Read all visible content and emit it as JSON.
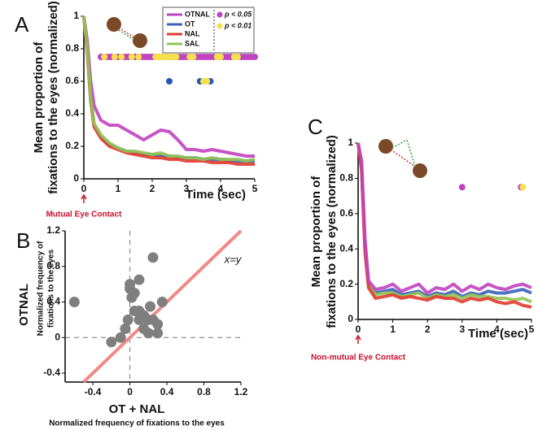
{
  "chart_data": [
    {
      "type": "line",
      "panel": "A",
      "ylabel": [
        "Mean proportion of",
        "fixations to the eyes (normalized)"
      ],
      "xlabel": "Time (sec)",
      "annotation": "Mutual Eye Contact",
      "x": [
        0,
        0.1,
        0.2,
        0.3,
        0.5,
        0.75,
        1,
        1.25,
        1.5,
        1.75,
        2,
        2.25,
        2.5,
        2.75,
        3,
        3.25,
        3.5,
        3.75,
        4,
        4.25,
        4.5,
        4.75,
        5
      ],
      "series": [
        {
          "name": "OTNAL",
          "color": "#c043c0",
          "values": [
            1,
            0.85,
            0.6,
            0.45,
            0.36,
            0.33,
            0.33,
            0.3,
            0.27,
            0.24,
            0.27,
            0.3,
            0.29,
            0.24,
            0.18,
            0.18,
            0.17,
            0.18,
            0.17,
            0.16,
            0.15,
            0.14,
            0.14
          ]
        },
        {
          "name": "OT",
          "color": "#3b62b8",
          "values": [
            1,
            0.8,
            0.5,
            0.33,
            0.26,
            0.21,
            0.19,
            0.17,
            0.16,
            0.15,
            0.15,
            0.14,
            0.14,
            0.13,
            0.13,
            0.13,
            0.12,
            0.12,
            0.12,
            0.11,
            0.11,
            0.11,
            0.11
          ]
        },
        {
          "name": "NAL",
          "color": "#e23a2e",
          "values": [
            1,
            0.78,
            0.48,
            0.32,
            0.25,
            0.2,
            0.18,
            0.16,
            0.15,
            0.14,
            0.13,
            0.13,
            0.12,
            0.12,
            0.11,
            0.11,
            0.11,
            0.1,
            0.1,
            0.1,
            0.09,
            0.09,
            0.09
          ]
        },
        {
          "name": "SAL",
          "color": "#92c456",
          "values": [
            1,
            0.8,
            0.5,
            0.34,
            0.27,
            0.22,
            0.19,
            0.17,
            0.17,
            0.16,
            0.15,
            0.16,
            0.14,
            0.14,
            0.13,
            0.13,
            0.12,
            0.13,
            0.12,
            0.12,
            0.12,
            0.11,
            0.12
          ]
        }
      ],
      "significance": [
        {
          "label": "p < 0.05",
          "color": "#c043c0"
        },
        {
          "label": "p < 0.01",
          "color": "#f6e04c"
        }
      ],
      "markers": [
        {
          "color": "#c043c0",
          "y": 0.75,
          "x": [
            0.5,
            0.6,
            0.7,
            0.8,
            0.9,
            1,
            1.1,
            1.2,
            1.3,
            1.4,
            1.5,
            1.6,
            1.7,
            1.8,
            1.9,
            2,
            2.1,
            2.2,
            2.3,
            2.4,
            2.5,
            2.6,
            2.7,
            2.8,
            2.9,
            3,
            3.1,
            3.2,
            3.3,
            3.4,
            3.5,
            3.6,
            3.7,
            3.8,
            3.9,
            4,
            4.1,
            4.2,
            4.3,
            4.4,
            4.5,
            4.6,
            4.7,
            4.8,
            4.9,
            5
          ]
        },
        {
          "color": "#f6e04c",
          "y": 0.75,
          "x": [
            0.6,
            0.9,
            1.1,
            1.4,
            1.6,
            2.1,
            2.2,
            2.3,
            2.4,
            2.5,
            2.6,
            2.7,
            3.1,
            3.2,
            3.9,
            4,
            4.4,
            4.5
          ]
        },
        {
          "color": "#2a55b8",
          "y": 0.6,
          "x": [
            2.5,
            3.4,
            3.7
          ]
        },
        {
          "color": "#f6e04c",
          "y": 0.6,
          "x": [
            3.5,
            3.6
          ]
        }
      ],
      "xlim": [
        0,
        5
      ],
      "xticks": [
        0,
        1,
        2,
        3,
        4,
        5
      ],
      "ylim": [
        0,
        1
      ],
      "yticks": [
        0,
        0.2,
        0.4,
        0.6,
        0.8,
        1
      ]
    },
    {
      "type": "scatter",
      "panel": "B",
      "ylabel": "OTNAL",
      "ylabel_sub": [
        "Normalized frequency of",
        "fixations to the eyes"
      ],
      "xlabel": "OT + NAL",
      "xlabel_sub": "Normalized frequency of fixations to the eyes",
      "annotation": "x=y",
      "identity_color": "#f08a86",
      "series": [
        {
          "color": "#7f7f7f",
          "x": [
            -0.6,
            -0.2,
            -0.1,
            -0.05,
            0,
            0,
            0.02,
            -0.02,
            0.05,
            0.1,
            0.1,
            0.15,
            0.15,
            0.2,
            0.2,
            0.22,
            0.25,
            0.25,
            0.3,
            0.3,
            0.35,
            0.1,
            0.05
          ],
          "values": [
            0.4,
            -0.05,
            0,
            0.1,
            0.55,
            0.6,
            0.45,
            0.2,
            0.3,
            0.2,
            0.3,
            0.1,
            0.25,
            0.05,
            0.2,
            0.35,
            0.2,
            0.9,
            0.15,
            0.05,
            0.4,
            0.65,
            0.5
          ]
        }
      ],
      "xlim": [
        -0.7,
        1.2
      ],
      "xticks": [
        -0.4,
        0,
        0.4,
        0.8,
        1.2
      ],
      "ylim": [
        -0.5,
        1.2
      ],
      "yticks": [
        -0.4,
        0,
        0.4,
        0.8,
        1.2
      ]
    },
    {
      "type": "line",
      "panel": "C",
      "ylabel": [
        "Mean proportion of",
        "fixations to the eyes (normalized)"
      ],
      "xlabel": "Time (sec)",
      "annotation": "Non-mutual Eye Contact",
      "x": [
        0,
        0.1,
        0.2,
        0.3,
        0.5,
        0.75,
        1,
        1.25,
        1.5,
        1.75,
        2,
        2.25,
        2.5,
        2.75,
        3,
        3.25,
        3.5,
        3.75,
        4,
        4.25,
        4.5,
        4.75,
        5
      ],
      "series": [
        {
          "color": "#3b62b8",
          "values": [
            1,
            0.85,
            0.4,
            0.2,
            0.15,
            0.16,
            0.17,
            0.14,
            0.15,
            0.16,
            0.13,
            0.15,
            0.14,
            0.16,
            0.13,
            0.15,
            0.14,
            0.16,
            0.15,
            0.15,
            0.16,
            0.17,
            0.15
          ]
        },
        {
          "color": "#92c456",
          "values": [
            1,
            0.86,
            0.4,
            0.2,
            0.14,
            0.15,
            0.15,
            0.13,
            0.14,
            0.15,
            0.12,
            0.14,
            0.13,
            0.14,
            0.12,
            0.14,
            0.13,
            0.13,
            0.12,
            0.12,
            0.11,
            0.12,
            0.1
          ]
        },
        {
          "color": "#e23a2e",
          "values": [
            1,
            0.85,
            0.38,
            0.18,
            0.12,
            0.13,
            0.14,
            0.12,
            0.13,
            0.12,
            0.11,
            0.13,
            0.12,
            0.12,
            0.1,
            0.12,
            0.11,
            0.12,
            0.1,
            0.09,
            0.1,
            0.08,
            0.07
          ]
        },
        {
          "color": "#c043c0",
          "values": [
            1,
            0.9,
            0.45,
            0.22,
            0.17,
            0.18,
            0.2,
            0.16,
            0.18,
            0.2,
            0.15,
            0.18,
            0.17,
            0.2,
            0.16,
            0.19,
            0.17,
            0.2,
            0.18,
            0.17,
            0.19,
            0.2,
            0.18
          ]
        }
      ],
      "markers": [
        {
          "color": "#c043c0",
          "y": 0.75,
          "x": [
            3,
            4.7
          ]
        },
        {
          "color": "#f6e04c",
          "y": 0.75,
          "x": [
            4.75
          ]
        }
      ],
      "xlim": [
        0,
        5
      ],
      "xticks": [
        0,
        1,
        2,
        3,
        4,
        5
      ],
      "ylim": [
        0,
        1
      ],
      "yticks": [
        0,
        0.2,
        0.4,
        0.6,
        0.8,
        1
      ]
    }
  ]
}
